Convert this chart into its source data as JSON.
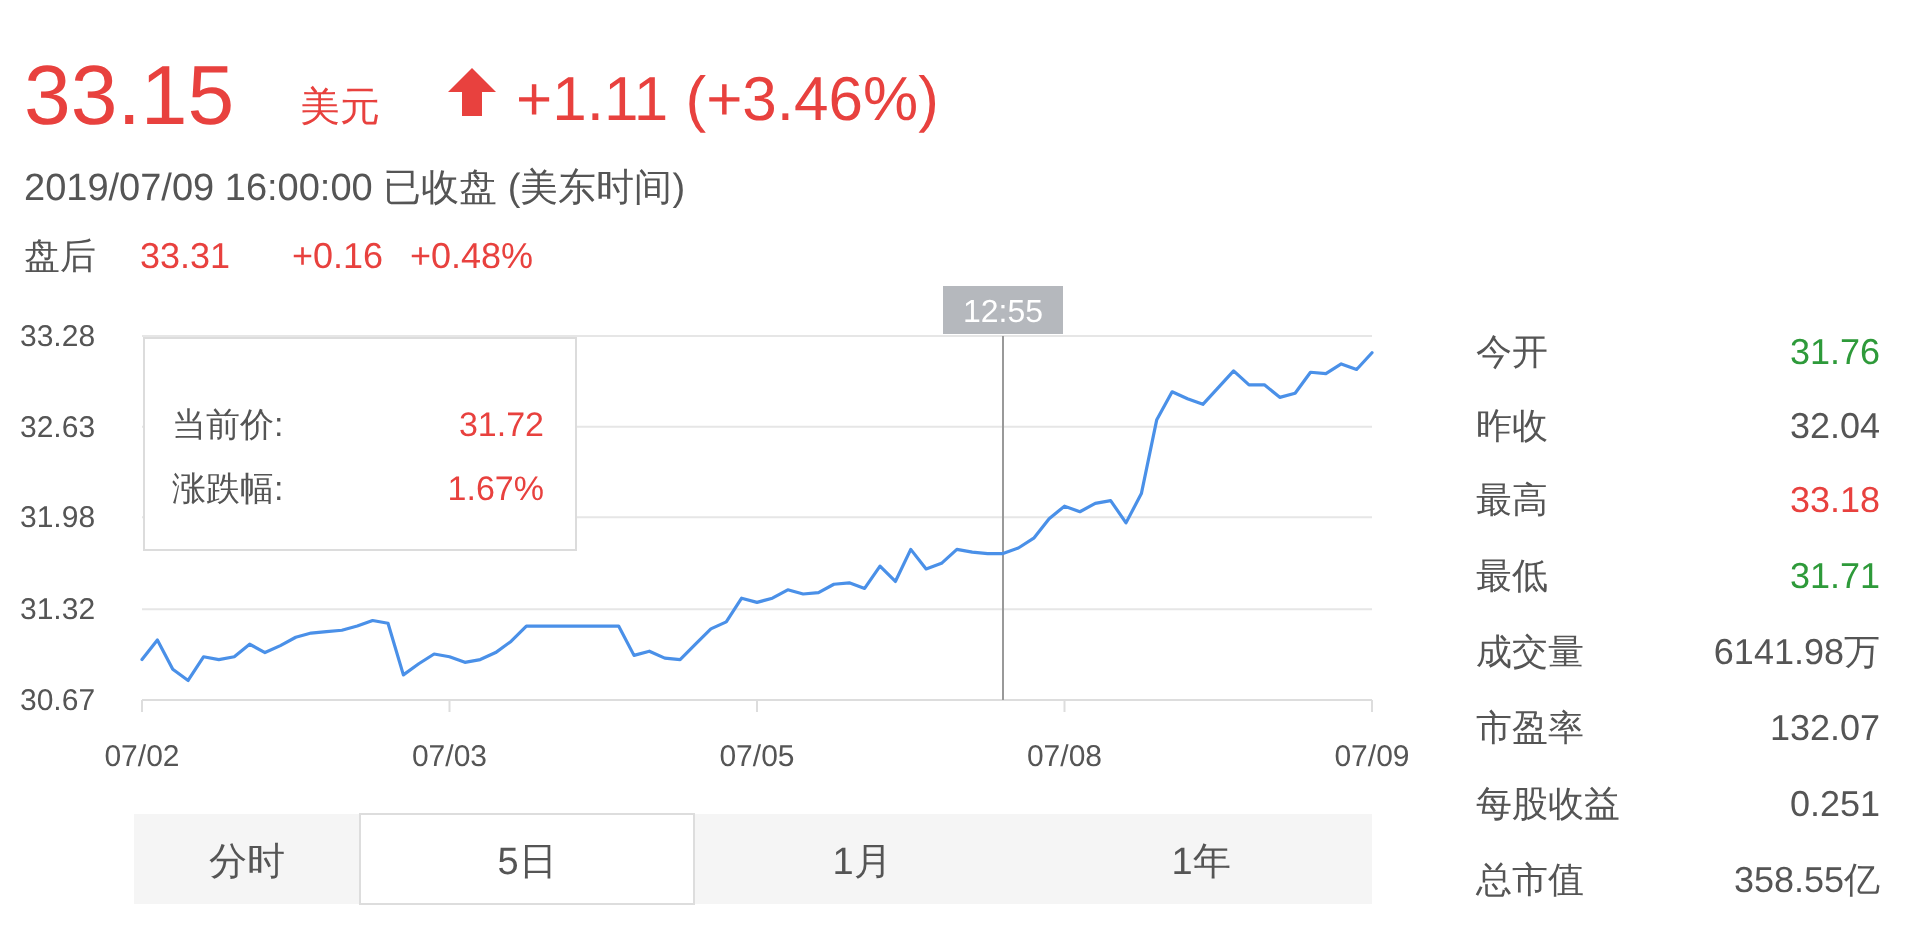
{
  "chart_data": {
    "type": "line",
    "title": "33.15",
    "subtitle": "2019/07/09 16:00:00  已收盘  (美东时间)",
    "categories": [
      "07/02",
      null,
      null,
      null,
      null,
      null,
      null,
      null,
      null,
      null,
      null,
      null,
      null,
      null,
      null,
      null,
      null,
      null,
      null,
      null,
      "07/03",
      null,
      null,
      null,
      null,
      null,
      null,
      null,
      null,
      null,
      null,
      null,
      null,
      null,
      null,
      null,
      null,
      null,
      null,
      null,
      "07/05",
      null,
      null,
      null,
      null,
      null,
      null,
      null,
      null,
      null,
      null,
      null,
      null,
      null,
      null,
      null,
      "12:55",
      null,
      null,
      null,
      "07/08",
      null,
      null,
      null,
      null,
      null,
      null,
      null,
      null,
      null,
      null,
      null,
      null,
      null,
      null,
      null,
      null,
      null,
      null,
      null,
      "07/09"
    ],
    "values": [
      30.96,
      31.1,
      30.89,
      30.81,
      30.98,
      30.96,
      30.98,
      31.07,
      31.01,
      31.06,
      31.12,
      31.15,
      31.16,
      31.17,
      31.2,
      31.24,
      31.22,
      30.85,
      30.93,
      31.0,
      30.98,
      30.94,
      30.96,
      31.01,
      31.09,
      31.2,
      31.2,
      31.2,
      31.2,
      31.2,
      31.2,
      31.2,
      30.99,
      31.02,
      30.97,
      30.96,
      31.07,
      31.18,
      31.23,
      31.4,
      31.37,
      31.4,
      31.46,
      31.43,
      31.44,
      31.5,
      31.51,
      31.47,
      31.63,
      31.52,
      31.75,
      31.61,
      31.65,
      31.75,
      31.73,
      31.72,
      31.72,
      31.76,
      31.83,
      31.97,
      32.06,
      32.02,
      32.08,
      32.1,
      31.94,
      32.15,
      32.68,
      32.88,
      32.83,
      32.79,
      32.91,
      33.03,
      32.93,
      32.93,
      32.84,
      32.87,
      33.02,
      33.01,
      33.08,
      33.04,
      33.16
    ],
    "color": "#4a90e8",
    "ylim": [
      30.67,
      33.28
    ],
    "yticks": [
      30.67,
      31.32,
      31.98,
      32.63,
      33.28
    ],
    "grid": "y",
    "ref_lines": [
      {
        "axis": "x",
        "value": "12:55",
        "color": "#999999"
      }
    ],
    "annotations": [
      "美元",
      "+1.11 (+3.46%)",
      "盘后",
      "33.31",
      "+0.16",
      "+0.48%",
      "当前价:",
      "31.72",
      "涨跌幅:",
      "1.67%",
      "今开",
      "31.76",
      "昨收",
      "32.04",
      "最高",
      "33.18",
      "最低",
      "31.71",
      "成交量",
      "6141.98万",
      "市盈率",
      "132.07",
      "每股收益",
      "0.251",
      "总市值",
      "358.55亿",
      "分时",
      "5日",
      "1月",
      "1年"
    ]
  }
}
